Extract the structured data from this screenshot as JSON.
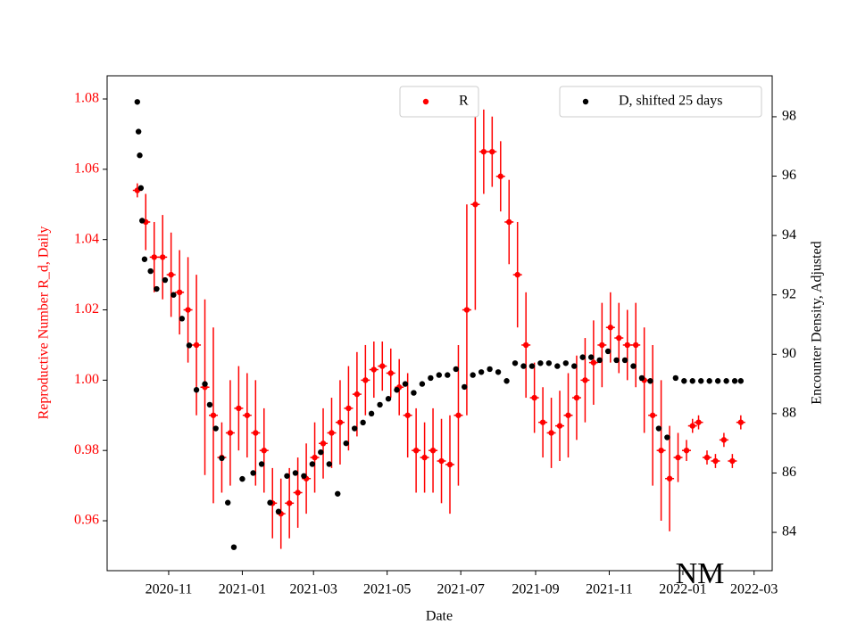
{
  "chart_data": {
    "type": "scatter",
    "x_label": "Date",
    "y_label": "Reproductive Number R_d, Daily",
    "y2_label": "Encounter Density, Adjusted",
    "annotation": "NM",
    "xlim": [
      "2020-09-11",
      "2022-03-16"
    ],
    "xticks": [
      {
        "value": "2020-11-01",
        "label": "2020-11"
      },
      {
        "value": "2021-01-01",
        "label": "2021-01"
      },
      {
        "value": "2021-03-01",
        "label": "2021-03"
      },
      {
        "value": "2021-05-01",
        "label": "2021-05"
      },
      {
        "value": "2021-07-01",
        "label": "2021-07"
      },
      {
        "value": "2021-09-01",
        "label": "2021-09"
      },
      {
        "value": "2021-11-01",
        "label": "2021-11"
      },
      {
        "value": "2022-01-01",
        "label": "2022-01"
      },
      {
        "value": "2022-03-01",
        "label": "2022-03"
      }
    ],
    "ylim": [
      0.9458,
      1.0866
    ],
    "yticks": [
      0.96,
      0.98,
      {
        "value": 1,
        "label": "1.00"
      },
      1.02,
      1.04,
      1.06,
      1.08
    ],
    "y2lim": [
      82.71,
      99.38
    ],
    "y2ticks": [
      84,
      86,
      88,
      90,
      92,
      94,
      96,
      98
    ],
    "series": [
      {
        "name": "R",
        "color": "#ff0000",
        "x": [
          "2020-10-06",
          "2020-10-13",
          "2020-10-20",
          "2020-10-27",
          "2020-11-03",
          "2020-11-10",
          "2020-11-17",
          "2020-11-24",
          "2020-12-01",
          "2020-12-08",
          "2020-12-15",
          "2020-12-22",
          "2020-12-29",
          "2021-01-05",
          "2021-01-12",
          "2021-01-19",
          "2021-01-26",
          "2021-02-02",
          "2021-02-09",
          "2021-02-16",
          "2021-02-23",
          "2021-03-02",
          "2021-03-09",
          "2021-03-16",
          "2021-03-23",
          "2021-03-30",
          "2021-04-06",
          "2021-04-13",
          "2021-04-20",
          "2021-04-27",
          "2021-05-04",
          "2021-05-11",
          "2021-05-18",
          "2021-05-25",
          "2021-06-01",
          "2021-06-08",
          "2021-06-15",
          "2021-06-22",
          "2021-06-29",
          "2021-07-06",
          "2021-07-13",
          "2021-07-20",
          "2021-07-27",
          "2021-08-03",
          "2021-08-10",
          "2021-08-17",
          "2021-08-24",
          "2021-08-31",
          "2021-09-07",
          "2021-09-14",
          "2021-09-21",
          "2021-09-28",
          "2021-10-05",
          "2021-10-12",
          "2021-10-19",
          "2021-10-26",
          "2021-11-02",
          "2021-11-09",
          "2021-11-16",
          "2021-11-23",
          "2021-11-30",
          "2021-12-07",
          "2021-12-14",
          "2021-12-21",
          "2021-12-28",
          "2022-01-04",
          "2022-01-09",
          "2022-01-14",
          "2022-01-21",
          "2022-01-28",
          "2022-02-04",
          "2022-02-11",
          "2022-02-18"
        ],
        "values": [
          1.054,
          1.045,
          1.035,
          1.035,
          1.03,
          1.025,
          1.02,
          1.01,
          0.998,
          0.99,
          0.978,
          0.985,
          0.992,
          0.99,
          0.985,
          0.98,
          0.965,
          0.962,
          0.965,
          0.968,
          0.972,
          0.978,
          0.982,
          0.985,
          0.988,
          0.992,
          0.996,
          1.0,
          1.003,
          1.004,
          1.002,
          0.998,
          0.99,
          0.98,
          0.978,
          0.98,
          0.977,
          0.976,
          0.99,
          1.02,
          1.05,
          1.065,
          1.065,
          1.058,
          1.045,
          1.03,
          1.01,
          0.995,
          0.988,
          0.985,
          0.987,
          0.99,
          0.995,
          1.0,
          1.005,
          1.01,
          1.015,
          1.012,
          1.01,
          1.01,
          1.0,
          0.99,
          0.98,
          0.972,
          0.978,
          0.98,
          0.987,
          0.988,
          0.978,
          0.977,
          0.983,
          0.977,
          0.988
        ],
        "errors": [
          0.002,
          0.008,
          0.01,
          0.012,
          0.012,
          0.012,
          0.015,
          0.02,
          0.025,
          0.025,
          0.01,
          0.015,
          0.012,
          0.012,
          0.015,
          0.012,
          0.01,
          0.01,
          0.01,
          0.01,
          0.01,
          0.01,
          0.01,
          0.01,
          0.012,
          0.012,
          0.012,
          0.01,
          0.008,
          0.007,
          0.007,
          0.008,
          0.012,
          0.012,
          0.01,
          0.012,
          0.012,
          0.014,
          0.02,
          0.03,
          0.03,
          0.012,
          0.01,
          0.01,
          0.012,
          0.015,
          0.015,
          0.01,
          0.01,
          0.01,
          0.01,
          0.012,
          0.012,
          0.012,
          0.012,
          0.012,
          0.01,
          0.01,
          0.01,
          0.012,
          0.015,
          0.02,
          0.02,
          0.015,
          0.007,
          0.003,
          0.002,
          0.002,
          0.002,
          0.002,
          0.002,
          0.002,
          0.002
        ]
      },
      {
        "name": "D, shifted 25 days",
        "color": "#000000",
        "axis": "y2",
        "x": [
          "2020-10-06",
          "2020-10-07",
          "2020-10-08",
          "2020-10-09",
          "2020-10-10",
          "2020-10-12",
          "2020-10-17",
          "2020-10-22",
          "2020-10-29",
          "2020-11-05",
          "2020-11-12",
          "2020-11-18",
          "2020-11-24",
          "2020-12-01",
          "2020-12-05",
          "2020-12-10",
          "2020-12-15",
          "2020-12-20",
          "2020-12-25",
          "2021-01-01",
          "2021-01-10",
          "2021-01-17",
          "2021-01-24",
          "2021-01-31",
          "2021-02-07",
          "2021-02-14",
          "2021-02-21",
          "2021-02-28",
          "2021-03-07",
          "2021-03-14",
          "2021-03-21",
          "2021-03-28",
          "2021-04-04",
          "2021-04-11",
          "2021-04-18",
          "2021-04-25",
          "2021-05-02",
          "2021-05-09",
          "2021-05-16",
          "2021-05-23",
          "2021-05-30",
          "2021-06-06",
          "2021-06-13",
          "2021-06-20",
          "2021-06-27",
          "2021-07-04",
          "2021-07-11",
          "2021-07-18",
          "2021-07-25",
          "2021-08-01",
          "2021-08-08",
          "2021-08-15",
          "2021-08-22",
          "2021-08-29",
          "2021-09-05",
          "2021-09-12",
          "2021-09-19",
          "2021-09-26",
          "2021-10-03",
          "2021-10-10",
          "2021-10-17",
          "2021-10-24",
          "2021-10-31",
          "2021-11-07",
          "2021-11-14",
          "2021-11-21",
          "2021-11-28",
          "2021-12-05",
          "2021-12-12",
          "2021-12-19",
          "2021-12-26",
          "2022-01-02",
          "2022-01-09",
          "2022-01-16",
          "2022-01-23",
          "2022-01-30",
          "2022-02-06",
          "2022-02-13",
          "2022-02-18"
        ],
        "values": [
          98.5,
          97.5,
          96.7,
          95.6,
          94.5,
          93.2,
          92.8,
          92.2,
          92.5,
          92,
          91.2,
          90.3,
          88.8,
          89,
          88.3,
          87.5,
          86.5,
          85,
          83.5,
          85.8,
          86,
          86.3,
          85,
          84.7,
          85.9,
          86,
          85.9,
          86.3,
          86.7,
          86.3,
          85.3,
          87,
          87.5,
          87.7,
          88,
          88.3,
          88.5,
          88.8,
          89,
          88.7,
          89,
          89.2,
          89.3,
          89.3,
          89.5,
          88.9,
          89.3,
          89.4,
          89.5,
          89.4,
          89.1,
          89.7,
          89.6,
          89.6,
          89.7,
          89.7,
          89.6,
          89.7,
          89.6,
          89.9,
          89.9,
          89.8,
          90.1,
          89.8,
          89.8,
          89.6,
          89.2,
          89.1,
          87.5,
          87.2,
          89.2,
          89.1,
          89.1,
          89.1,
          89.1,
          89.1,
          89.1,
          89.1,
          89.1
        ]
      }
    ]
  }
}
